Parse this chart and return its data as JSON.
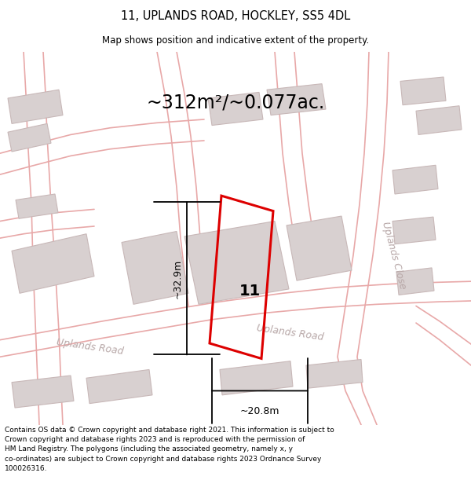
{
  "title": "11, UPLANDS ROAD, HOCKLEY, SS5 4DL",
  "subtitle": "Map shows position and indicative extent of the property.",
  "area_text": "~312m²/~0.077ac.",
  "dim_width": "~20.8m",
  "dim_height": "~32.9m",
  "plot_number": "11",
  "footer": "Contains OS data © Crown copyright and database right 2021. This information is subject to Crown copyright and database rights 2023 and is reproduced with the permission of HM Land Registry. The polygons (including the associated geometry, namely x, y co-ordinates) are subject to Crown copyright and database rights 2023 Ordnance Survey 100026316.",
  "map_bg": "#f9f5f5",
  "road_line_color": "#e8a8a8",
  "building_fill": "#d8d0d0",
  "building_edge": "#c8b8b8",
  "highlight_color": "#dd0000",
  "title_fontsize": 10.5,
  "subtitle_fontsize": 8.5,
  "area_fontsize": 17,
  "number_fontsize": 14,
  "footer_fontsize": 6.5,
  "road_label_color": "#b8a8a8",
  "road_label_fontsize": 9
}
